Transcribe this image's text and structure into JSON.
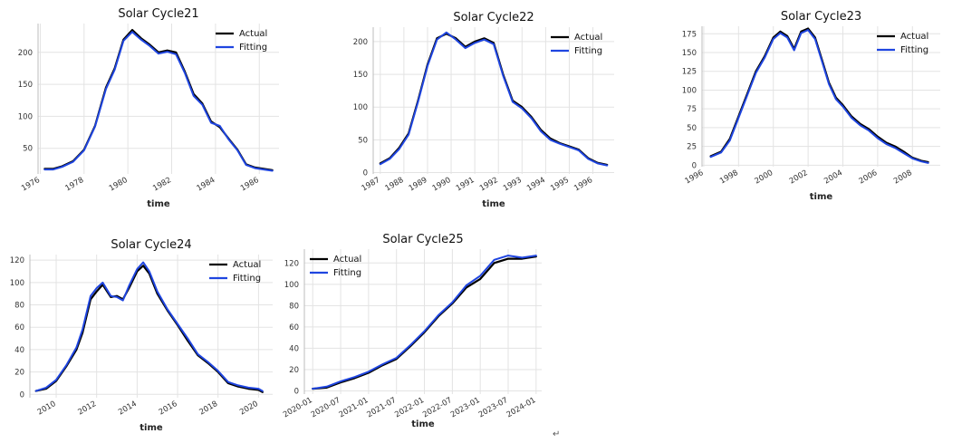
{
  "colors": {
    "actual": "#000000",
    "fitting": "#1f45e0",
    "grid": "#e3e3e3"
  },
  "page": {
    "return_mark": "↵"
  },
  "chart_data": [
    {
      "type": "line",
      "title": "Solar Cycle21",
      "xlabel": "time",
      "ylabel": "",
      "xlim": [
        1975.9,
        1986.9
      ],
      "ylim": [
        10,
        245
      ],
      "xticks": [
        1976,
        1978,
        1980,
        1982,
        1984,
        1986
      ],
      "xtick_labels": [
        "1976",
        "1978",
        "1980",
        "1982",
        "1984",
        "1986"
      ],
      "yticks": [
        50,
        100,
        150,
        200
      ],
      "ytick_labels": [
        "50",
        "100",
        "150",
        "200"
      ],
      "legend": {
        "position": "top-right",
        "entries": [
          "Actual",
          "Fitting"
        ]
      },
      "grid": true,
      "series": [
        {
          "name": "Actual",
          "x": [
            1976.2,
            1976.6,
            1977.0,
            1977.5,
            1978.0,
            1978.5,
            1979.0,
            1979.4,
            1979.8,
            1980.2,
            1980.6,
            1981.0,
            1981.4,
            1981.8,
            1982.2,
            1982.6,
            1983.0,
            1983.4,
            1983.8,
            1984.2,
            1984.6,
            1985.0,
            1985.4,
            1985.8,
            1986.2,
            1986.6
          ],
          "y": [
            18,
            18,
            22,
            30,
            48,
            85,
            145,
            175,
            220,
            235,
            222,
            212,
            200,
            203,
            200,
            170,
            135,
            120,
            92,
            83,
            65,
            48,
            25,
            20,
            18,
            16
          ]
        },
        {
          "name": "Fitting",
          "x": [
            1976.2,
            1976.6,
            1977.0,
            1977.5,
            1978.0,
            1978.5,
            1979.0,
            1979.4,
            1979.8,
            1980.2,
            1980.6,
            1981.0,
            1981.4,
            1981.8,
            1982.2,
            1982.6,
            1983.0,
            1983.4,
            1983.8,
            1984.2,
            1984.6,
            1985.0,
            1985.4,
            1985.8,
            1986.2,
            1986.6
          ],
          "y": [
            17,
            17,
            21,
            29,
            47,
            84,
            143,
            173,
            218,
            232,
            220,
            210,
            198,
            201,
            197,
            168,
            132,
            118,
            90,
            85,
            64,
            47,
            24,
            19,
            17,
            15
          ]
        }
      ]
    },
    {
      "type": "line",
      "title": "Solar Cycle22",
      "xlabel": "time",
      "ylabel": "",
      "xlim": [
        1986.7,
        1996.9
      ],
      "ylim": [
        -2,
        222
      ],
      "xticks": [
        1987,
        1988,
        1989,
        1990,
        1991,
        1992,
        1993,
        1994,
        1995,
        1996
      ],
      "xtick_labels": [
        "1987",
        "1988",
        "1989",
        "1990",
        "1991",
        "1992",
        "1993",
        "1994",
        "1995",
        "1996"
      ],
      "yticks": [
        0,
        50,
        100,
        150,
        200
      ],
      "ytick_labels": [
        "0",
        "50",
        "100",
        "150",
        "200"
      ],
      "legend": {
        "position": "top-right",
        "entries": [
          "Actual",
          "Fitting"
        ]
      },
      "grid": true,
      "series": [
        {
          "name": "Actual",
          "x": [
            1987.0,
            1987.4,
            1987.8,
            1988.2,
            1988.6,
            1989.0,
            1989.4,
            1989.8,
            1990.2,
            1990.6,
            1991.0,
            1991.4,
            1991.8,
            1992.2,
            1992.6,
            1993.0,
            1993.4,
            1993.8,
            1994.2,
            1994.6,
            1995.0,
            1995.4,
            1995.8,
            1996.2,
            1996.6
          ],
          "y": [
            14,
            22,
            38,
            60,
            110,
            165,
            205,
            212,
            205,
            192,
            200,
            205,
            198,
            150,
            110,
            100,
            85,
            65,
            52,
            45,
            40,
            35,
            22,
            15,
            12
          ]
        },
        {
          "name": "Fitting",
          "x": [
            1987.0,
            1987.4,
            1987.8,
            1988.2,
            1988.6,
            1989.0,
            1989.4,
            1989.8,
            1990.2,
            1990.6,
            1991.0,
            1991.4,
            1991.8,
            1992.2,
            1992.6,
            1993.0,
            1993.4,
            1993.8,
            1994.2,
            1994.6,
            1995.0,
            1995.4,
            1995.8,
            1996.2,
            1996.6
          ],
          "y": [
            13,
            21,
            36,
            58,
            108,
            163,
            203,
            214,
            203,
            190,
            198,
            203,
            196,
            148,
            108,
            98,
            83,
            63,
            50,
            44,
            39,
            34,
            21,
            14,
            11
          ]
        }
      ]
    },
    {
      "type": "line",
      "title": "Solar Cycle23",
      "xlabel": "time",
      "ylabel": "",
      "xlim": [
        1995.9,
        2009.6
      ],
      "ylim": [
        -2,
        185
      ],
      "xticks": [
        1996,
        1998,
        2000,
        2002,
        2004,
        2006,
        2008
      ],
      "xtick_labels": [
        "1996",
        "1998",
        "2000",
        "2002",
        "2004",
        "2006",
        "2008"
      ],
      "yticks": [
        0,
        25,
        50,
        75,
        100,
        125,
        150,
        175
      ],
      "ytick_labels": [
        "0",
        "25",
        "50",
        "75",
        "100",
        "125",
        "150",
        "175"
      ],
      "legend": {
        "position": "top-right",
        "entries": [
          "Actual",
          "Fitting"
        ]
      },
      "grid": true,
      "series": [
        {
          "name": "Actual",
          "x": [
            1996.4,
            1997.0,
            1997.5,
            1998.0,
            1998.5,
            1999.0,
            1999.5,
            2000.0,
            2000.4,
            2000.8,
            2001.2,
            2001.6,
            2002.0,
            2002.4,
            2002.8,
            2003.2,
            2003.6,
            2004.0,
            2004.5,
            2005.0,
            2005.5,
            2006.0,
            2006.5,
            2007.0,
            2007.5,
            2008.0,
            2008.5,
            2008.9
          ],
          "y": [
            12,
            18,
            35,
            65,
            95,
            125,
            145,
            170,
            178,
            172,
            155,
            178,
            182,
            170,
            140,
            110,
            90,
            80,
            65,
            55,
            48,
            38,
            30,
            25,
            18,
            10,
            6,
            4
          ]
        },
        {
          "name": "Fitting",
          "x": [
            1996.4,
            1997.0,
            1997.5,
            1998.0,
            1998.5,
            1999.0,
            1999.5,
            2000.0,
            2000.4,
            2000.8,
            2001.2,
            2001.6,
            2002.0,
            2002.4,
            2002.8,
            2003.2,
            2003.6,
            2004.0,
            2004.5,
            2005.0,
            2005.5,
            2006.0,
            2006.5,
            2007.0,
            2007.5,
            2008.0,
            2008.5,
            2008.9
          ],
          "y": [
            11,
            17,
            33,
            63,
            93,
            123,
            143,
            168,
            176,
            170,
            153,
            176,
            180,
            168,
            138,
            108,
            88,
            78,
            63,
            53,
            46,
            36,
            28,
            23,
            16,
            9,
            5,
            3
          ]
        }
      ]
    },
    {
      "type": "line",
      "title": "Solar Cycle24",
      "xlabel": "time",
      "ylabel": "",
      "xlim": [
        2008.7,
        2020.7
      ],
      "ylim": [
        -3,
        125
      ],
      "xticks": [
        2010,
        2012,
        2014,
        2016,
        2018,
        2020
      ],
      "xtick_labels": [
        "2010",
        "2012",
        "2014",
        "2016",
        "2018",
        "2020"
      ],
      "yticks": [
        0,
        20,
        40,
        60,
        80,
        100,
        120
      ],
      "ytick_labels": [
        "0",
        "20",
        "40",
        "60",
        "80",
        "100",
        "120"
      ],
      "legend": {
        "position": "top-right",
        "entries": [
          "Actual",
          "Fitting"
        ]
      },
      "grid": true,
      "series": [
        {
          "name": "Actual",
          "x": [
            2009.0,
            2009.5,
            2010.0,
            2010.5,
            2011.0,
            2011.3,
            2011.7,
            2012.0,
            2012.3,
            2012.7,
            2013.0,
            2013.3,
            2013.6,
            2014.0,
            2014.3,
            2014.6,
            2015.0,
            2015.5,
            2016.0,
            2016.5,
            2017.0,
            2017.5,
            2018.0,
            2018.5,
            2019.0,
            2019.5,
            2020.0,
            2020.2
          ],
          "y": [
            3,
            5,
            12,
            25,
            40,
            55,
            85,
            92,
            98,
            87,
            88,
            85,
            95,
            110,
            115,
            108,
            90,
            75,
            62,
            48,
            35,
            28,
            20,
            10,
            7,
            5,
            4,
            2
          ]
        },
        {
          "name": "Fitting",
          "x": [
            2009.0,
            2009.5,
            2010.0,
            2010.5,
            2011.0,
            2011.3,
            2011.7,
            2012.0,
            2012.3,
            2012.7,
            2013.0,
            2013.3,
            2013.6,
            2014.0,
            2014.3,
            2014.6,
            2015.0,
            2015.5,
            2016.0,
            2016.5,
            2017.0,
            2017.5,
            2018.0,
            2018.5,
            2019.0,
            2019.5,
            2020.0,
            2020.2
          ],
          "y": [
            3,
            6,
            13,
            26,
            42,
            58,
            88,
            95,
            100,
            88,
            87,
            84,
            97,
            112,
            118,
            110,
            92,
            76,
            63,
            50,
            36,
            29,
            21,
            11,
            8,
            6,
            5,
            3
          ]
        }
      ]
    },
    {
      "type": "line",
      "title": "Solar Cycle25",
      "xlabel": "time",
      "ylabel": "",
      "xlim": [
        2019.85,
        2024.1
      ],
      "ylim": [
        -3,
        133
      ],
      "xticks": [
        2020.0,
        2020.5,
        2021.0,
        2021.5,
        2022.0,
        2022.5,
        2023.0,
        2023.5,
        2024.0
      ],
      "xtick_labels": [
        "2020-01",
        "2020-07",
        "2021-01",
        "2021-07",
        "2022-01",
        "2022-07",
        "2023-01",
        "2023-07",
        "2024-01"
      ],
      "yticks": [
        0,
        20,
        40,
        60,
        80,
        100,
        120
      ],
      "ytick_labels": [
        "0",
        "20",
        "40",
        "60",
        "80",
        "100",
        "120"
      ],
      "legend": {
        "position": "top-left",
        "entries": [
          "Actual",
          "Fitting"
        ]
      },
      "grid": true,
      "series": [
        {
          "name": "Actual",
          "x": [
            2020.0,
            2020.25,
            2020.5,
            2020.75,
            2021.0,
            2021.25,
            2021.5,
            2021.75,
            2022.0,
            2022.25,
            2022.5,
            2022.75,
            2023.0,
            2023.25,
            2023.5,
            2023.75,
            2024.0
          ],
          "y": [
            2,
            3,
            8,
            12,
            17,
            24,
            30,
            42,
            55,
            70,
            82,
            97,
            105,
            120,
            124,
            124,
            126
          ]
        },
        {
          "name": "Fitting",
          "x": [
            2020.0,
            2020.25,
            2020.5,
            2020.75,
            2021.0,
            2021.25,
            2021.5,
            2021.75,
            2022.0,
            2022.25,
            2022.5,
            2022.75,
            2023.0,
            2023.25,
            2023.5,
            2023.75,
            2024.0
          ],
          "y": [
            2,
            4,
            9,
            13,
            18,
            25,
            31,
            43,
            56,
            71,
            83,
            99,
            108,
            123,
            127,
            125,
            127
          ]
        }
      ]
    }
  ]
}
